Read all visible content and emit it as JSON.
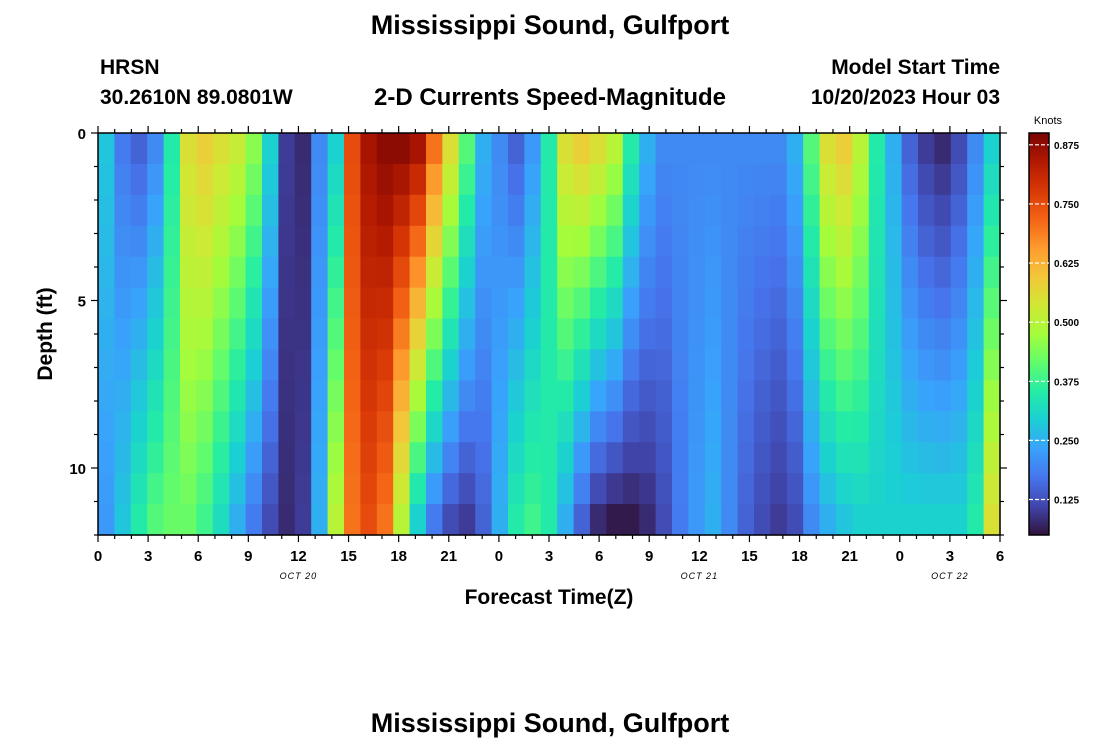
{
  "header": {
    "title": "Mississippi Sound, Gulfport",
    "station_name": "HRSN",
    "station_coords": "30.2610N  89.0801W",
    "subtitle": "2-D Currents Speed-Magnitude",
    "model_label": "Model Start Time",
    "model_time": "10/20/2023 Hour 03"
  },
  "footer": {
    "repeated_title": "Mississippi Sound, Gulfport"
  },
  "chart_data": {
    "type": "heatmap",
    "title": "2-D Currents Speed-Magnitude",
    "xlabel": "Forecast Time(Z)",
    "ylabel": "Depth (ft)",
    "x_range_hours": [
      0,
      54
    ],
    "y_range_ft": [
      0,
      12
    ],
    "y_ticks": [
      "0",
      "5",
      "10"
    ],
    "y_tick_values": [
      0,
      5,
      10
    ],
    "x_tick_labels": [
      "0",
      "3",
      "6",
      "9",
      "12",
      "15",
      "18",
      "21",
      "0",
      "3",
      "6",
      "9",
      "12",
      "15",
      "18",
      "21",
      "0",
      "3",
      "6"
    ],
    "date_labels": [
      {
        "text": "OCT 20",
        "hour": 12
      },
      {
        "text": "OCT 21",
        "hour": 36
      },
      {
        "text": "OCT 22",
        "hour": 51
      }
    ],
    "colorbar": {
      "label": "Knots",
      "range": [
        0.05,
        0.9
      ],
      "ticks": [
        "0.875",
        "0.750",
        "0.625",
        "0.500",
        "0.375",
        "0.250",
        "0.125"
      ],
      "tick_values": [
        0.875,
        0.75,
        0.625,
        0.5,
        0.375,
        0.25,
        0.125
      ],
      "colors": [
        "#30123b",
        "#4145ab",
        "#4675ed",
        "#39a2fc",
        "#1bcfd4",
        "#24eca6",
        "#61fc6c",
        "#a4fc3b",
        "#d1e834",
        "#f3c63a",
        "#fe9b2d",
        "#f36315",
        "#d93806",
        "#b11901",
        "#7a0403"
      ]
    },
    "x_hours": [
      0,
      1,
      2,
      3,
      4,
      5,
      6,
      7,
      8,
      9,
      10,
      11,
      12,
      13,
      14,
      15,
      16,
      17,
      18,
      19,
      20,
      21,
      22,
      23,
      24,
      25,
      26,
      27,
      28,
      29,
      30,
      31,
      32,
      33,
      34,
      35,
      36,
      37,
      38,
      39,
      40,
      41,
      42,
      43,
      44,
      45,
      46,
      47,
      48,
      49,
      50,
      51,
      52,
      53,
      54
    ],
    "depth_rows_ft": [
      0,
      1,
      2,
      3,
      4,
      5,
      6,
      7,
      8,
      9,
      10,
      11,
      12
    ],
    "surface_speed_knots": [
      0.28,
      0.18,
      0.15,
      0.2,
      0.35,
      0.55,
      0.58,
      0.55,
      0.52,
      0.45,
      0.3,
      0.1,
      0.08,
      0.2,
      0.3,
      0.75,
      0.85,
      0.88,
      0.88,
      0.85,
      0.7,
      0.55,
      0.4,
      0.25,
      0.2,
      0.15,
      0.22,
      0.35,
      0.55,
      0.58,
      0.55,
      0.5,
      0.35,
      0.25,
      0.2,
      0.2,
      0.2,
      0.2,
      0.2,
      0.2,
      0.2,
      0.2,
      0.25,
      0.4,
      0.55,
      0.58,
      0.5,
      0.35,
      0.25,
      0.15,
      0.1,
      0.08,
      0.12,
      0.2,
      0.3
    ],
    "bottom_speed_knots": [
      0.22,
      0.28,
      0.35,
      0.4,
      0.42,
      0.42,
      0.38,
      0.32,
      0.25,
      0.18,
      0.12,
      0.08,
      0.1,
      0.25,
      0.5,
      0.7,
      0.75,
      0.7,
      0.5,
      0.3,
      0.18,
      0.12,
      0.1,
      0.15,
      0.25,
      0.35,
      0.38,
      0.35,
      0.25,
      0.15,
      0.08,
      0.06,
      0.06,
      0.08,
      0.12,
      0.18,
      0.22,
      0.25,
      0.2,
      0.15,
      0.12,
      0.1,
      0.12,
      0.2,
      0.25,
      0.28,
      0.3,
      0.3,
      0.3,
      0.3,
      0.3,
      0.3,
      0.3,
      0.35,
      0.55
    ]
  }
}
